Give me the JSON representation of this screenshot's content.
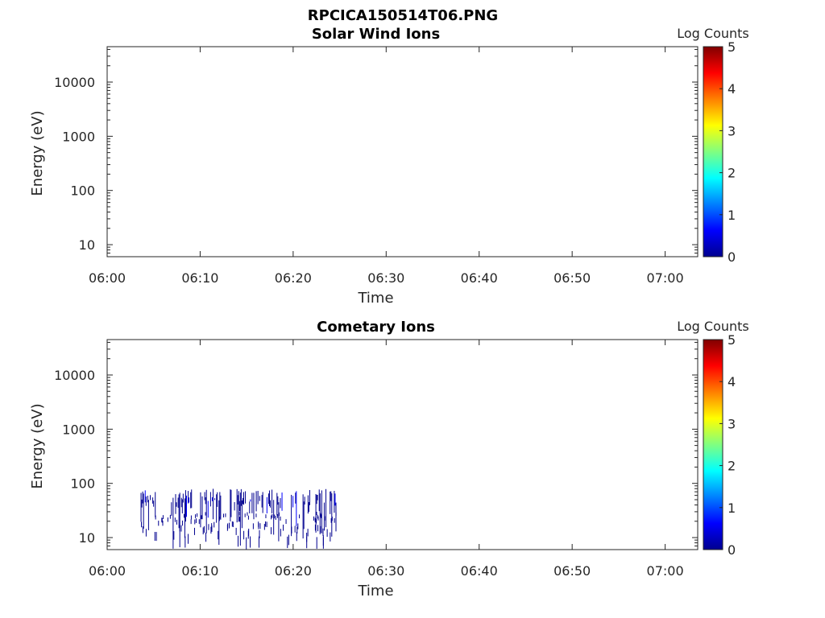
{
  "figure_title": "RPCICA150514T06.PNG",
  "colormap": [
    "#00008f",
    "#0000ff",
    "#0080ff",
    "#00ffff",
    "#80ff80",
    "#ffff00",
    "#ff8000",
    "#ff0000",
    "#800000"
  ],
  "chart_data": [
    {
      "type": "heatmap",
      "title": "Solar Wind Ions",
      "xlabel": "Time",
      "ylabel": "Energy (eV)",
      "x_ticks": [
        "06:00",
        "06:10",
        "06:20",
        "06:30",
        "06:40",
        "06:50",
        "07:00"
      ],
      "x_range_min": [
        0,
        63.5
      ],
      "y_ticks": [
        "10",
        "100",
        "1000",
        "10000"
      ],
      "y_scale": "log",
      "y_range_eV": [
        6,
        45000
      ],
      "colorbar": {
        "label": "Log Counts",
        "ticks": [
          "0",
          "1",
          "2",
          "3",
          "4",
          "5"
        ],
        "range": [
          0,
          5
        ]
      },
      "data_present": false
    },
    {
      "type": "heatmap",
      "title": "Cometary Ions",
      "xlabel": "Time",
      "ylabel": "Energy (eV)",
      "x_ticks": [
        "06:00",
        "06:10",
        "06:20",
        "06:30",
        "06:40",
        "06:50",
        "07:00"
      ],
      "x_range_min": [
        0,
        63.5
      ],
      "y_ticks": [
        "10",
        "100",
        "1000",
        "10000"
      ],
      "y_scale": "log",
      "y_range_eV": [
        6,
        45000
      ],
      "colorbar": {
        "label": "Log Counts",
        "ticks": [
          "0",
          "1",
          "2",
          "3",
          "4",
          "5"
        ],
        "range": [
          0,
          5
        ]
      },
      "data_present": true,
      "signal_time_min": [
        3.6,
        24.8
      ],
      "signal_energy_eV": [
        6,
        80
      ],
      "signal_log_counts": [
        0,
        0.5
      ],
      "signal_bursts_min": [
        [
          3.6,
          5.2
        ],
        [
          6.6,
          9.2
        ],
        [
          10.0,
          12.2
        ],
        [
          13.2,
          16.4
        ],
        [
          16.6,
          19.0
        ],
        [
          19.4,
          21.8
        ],
        [
          22.4,
          24.8
        ]
      ]
    }
  ]
}
